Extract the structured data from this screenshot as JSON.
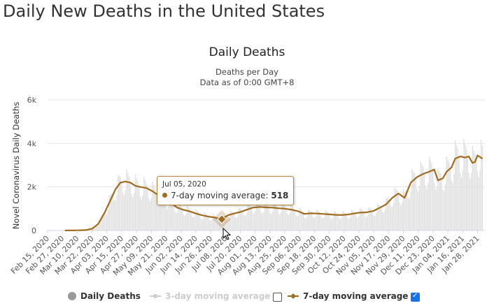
{
  "page": {
    "heading": "Daily New Deaths in the United States"
  },
  "chart_data": {
    "type": "bar",
    "title": "Daily Deaths",
    "subtitle": "Deaths per Day",
    "subtitle2": "Data as of 0:00 GMT+8",
    "ylabel": "Novel Coronavirus Daily Deaths",
    "ylim": [
      0,
      6000
    ],
    "yticks": [
      {
        "value": 0,
        "label": "0"
      },
      {
        "value": 2000,
        "label": "2k"
      },
      {
        "value": 4000,
        "label": "4k"
      },
      {
        "value": 6000,
        "label": "6k"
      }
    ],
    "x_range": [
      "2020-02-15",
      "2021-02-03"
    ],
    "xticks": [
      "Feb 15, 2020",
      "Feb 27, 2020",
      "Mar 10, 2020",
      "Mar 22, 2020",
      "Apr 03, 2020",
      "Apr 15, 2020",
      "Apr 27, 2020",
      "May 09, 2020",
      "May 21, 2020",
      "Jun 02, 2020",
      "Jun 14, 2020",
      "Jun 26, 2020",
      "Jul 08, 2020",
      "Jul 20, 2020",
      "Aug 01, 2020",
      "Aug 13, 2020",
      "Aug 25, 2020",
      "Sep 06, 2020",
      "Sep 18, 2020",
      "Sep 30, 2020",
      "Oct 12, 2020",
      "Oct 24, 2020",
      "Nov 05, 2020",
      "Nov 17, 2020",
      "Nov 29, 2020",
      "Dec 11, 2020",
      "Dec 23, 2020",
      "Jan 04, 2021",
      "Jan 16, 2021",
      "Jan 28, 2021"
    ],
    "grid": true,
    "legend_position": "bottom",
    "series": [
      {
        "name": "Daily Deaths",
        "type": "bar",
        "color": "#d9d9d9",
        "note": "daily values visualized with weekly pattern around the 7-day average"
      },
      {
        "name": "3-day moving average",
        "type": "line",
        "color": "#cccccc",
        "visible": false
      },
      {
        "name": "7-day moving average",
        "type": "line",
        "color": "#a06d1e",
        "visible": true,
        "points": [
          [
            "2020-02-29",
            0
          ],
          [
            "2020-03-10",
            5
          ],
          [
            "2020-03-17",
            20
          ],
          [
            "2020-03-22",
            80
          ],
          [
            "2020-03-27",
            300
          ],
          [
            "2020-04-01",
            800
          ],
          [
            "2020-04-06",
            1400
          ],
          [
            "2020-04-10",
            1900
          ],
          [
            "2020-04-14",
            2200
          ],
          [
            "2020-04-18",
            2250
          ],
          [
            "2020-04-22",
            2200
          ],
          [
            "2020-04-26",
            2050
          ],
          [
            "2020-04-30",
            2000
          ],
          [
            "2020-05-05",
            1950
          ],
          [
            "2020-05-10",
            1800
          ],
          [
            "2020-05-15",
            1600
          ],
          [
            "2020-05-20",
            1450
          ],
          [
            "2020-05-25",
            1250
          ],
          [
            "2020-05-30",
            1050
          ],
          [
            "2020-06-04",
            950
          ],
          [
            "2020-06-09",
            880
          ],
          [
            "2020-06-14",
            780
          ],
          [
            "2020-06-19",
            700
          ],
          [
            "2020-06-24",
            640
          ],
          [
            "2020-06-29",
            600
          ],
          [
            "2020-07-05",
            518
          ],
          [
            "2020-07-10",
            700
          ],
          [
            "2020-07-15",
            780
          ],
          [
            "2020-07-20",
            850
          ],
          [
            "2020-07-25",
            950
          ],
          [
            "2020-07-30",
            1050
          ],
          [
            "2020-08-05",
            1080
          ],
          [
            "2020-08-10",
            1060
          ],
          [
            "2020-08-15",
            1050
          ],
          [
            "2020-08-20",
            1020
          ],
          [
            "2020-08-25",
            1000
          ],
          [
            "2020-08-31",
            950
          ],
          [
            "2020-09-05",
            880
          ],
          [
            "2020-09-10",
            760
          ],
          [
            "2020-09-15",
            790
          ],
          [
            "2020-09-20",
            780
          ],
          [
            "2020-09-25",
            760
          ],
          [
            "2020-09-30",
            740
          ],
          [
            "2020-10-05",
            720
          ],
          [
            "2020-10-10",
            710
          ],
          [
            "2020-10-15",
            730
          ],
          [
            "2020-10-20",
            780
          ],
          [
            "2020-10-25",
            820
          ],
          [
            "2020-10-30",
            830
          ],
          [
            "2020-11-05",
            900
          ],
          [
            "2020-11-10",
            1050
          ],
          [
            "2020-11-15",
            1200
          ],
          [
            "2020-11-20",
            1500
          ],
          [
            "2020-11-25",
            1700
          ],
          [
            "2020-11-30",
            1500
          ],
          [
            "2020-12-05",
            2200
          ],
          [
            "2020-12-10",
            2450
          ],
          [
            "2020-12-15",
            2600
          ],
          [
            "2020-12-20",
            2700
          ],
          [
            "2020-12-24",
            2800
          ],
          [
            "2020-12-27",
            2300
          ],
          [
            "2020-12-31",
            2400
          ],
          [
            "2021-01-03",
            2700
          ],
          [
            "2021-01-07",
            2900
          ],
          [
            "2021-01-10",
            3300
          ],
          [
            "2021-01-14",
            3400
          ],
          [
            "2021-01-18",
            3350
          ],
          [
            "2021-01-21",
            3400
          ],
          [
            "2021-01-24",
            3100
          ],
          [
            "2021-01-26",
            3150
          ],
          [
            "2021-01-28",
            3450
          ],
          [
            "2021-02-01",
            3300
          ]
        ]
      }
    ],
    "tooltip": {
      "date": "Jul 05, 2020",
      "series_label": "7-day moving average",
      "value": "518"
    }
  },
  "legend": {
    "daily": "Daily Deaths",
    "three_day": "3-day moving average",
    "seven_day": "7-day moving average",
    "three_day_checked": false,
    "seven_day_checked": true
  }
}
